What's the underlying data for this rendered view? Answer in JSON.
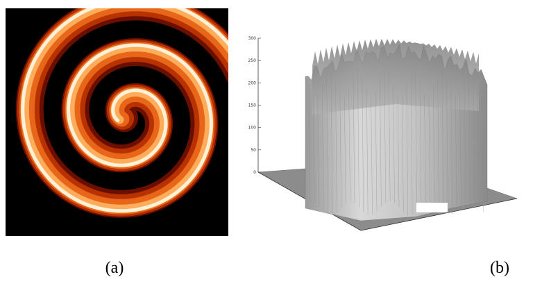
{
  "figure": {
    "panels": [
      {
        "label": "(a)"
      },
      {
        "label": "(b)",
        "zticks": [
          "300",
          "250",
          "200",
          "150",
          "100",
          "50",
          "0"
        ]
      }
    ]
  }
}
